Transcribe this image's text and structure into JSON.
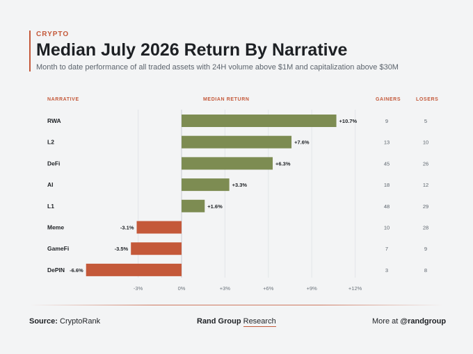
{
  "header": {
    "category": "CRYPTO",
    "title": "Median July 2026 Return By Narrative",
    "subtitle": "Month to date performance of all traded assets with 24H volume above $1M and capitalization above $30M"
  },
  "columns": {
    "narrative": "NARRATIVE",
    "median_return": "MEDIAN RETURN",
    "gainers": "GAINERS",
    "losers": "LOSERS"
  },
  "colors": {
    "positive": "#7d8c52",
    "negative": "#c4593a",
    "accent": "#c4593a"
  },
  "chart_data": {
    "type": "bar",
    "orientation": "horizontal",
    "categories": [
      "RWA",
      "L2",
      "DeFi",
      "AI",
      "L1",
      "Meme",
      "GameFi",
      "DePIN"
    ],
    "values": [
      10.7,
      7.6,
      6.3,
      3.3,
      1.6,
      -3.1,
      -3.5,
      -6.6
    ],
    "value_labels": [
      "+10.7%",
      "+7.6%",
      "+6.3%",
      "+3.3%",
      "+1.6%",
      "-3.1%",
      "-3.5%",
      "-6.6%"
    ],
    "gainers": [
      9,
      13,
      45,
      18,
      48,
      10,
      7,
      3
    ],
    "losers": [
      5,
      10,
      26,
      12,
      29,
      28,
      9,
      8
    ],
    "xticks": [
      -3,
      0,
      3,
      6,
      9,
      12
    ],
    "xtick_labels": [
      "-3%",
      "0%",
      "+3%",
      "+6%",
      "+9%",
      "+12%"
    ],
    "xlim": [
      -6.6,
      12
    ],
    "grid": "vertical"
  },
  "footer": {
    "source_label": "Source:",
    "source_value": "CryptoRank",
    "brand_bold": "Rand Group",
    "brand_rest": "Research",
    "more_label": "More at",
    "more_handle": "@randgroup"
  }
}
